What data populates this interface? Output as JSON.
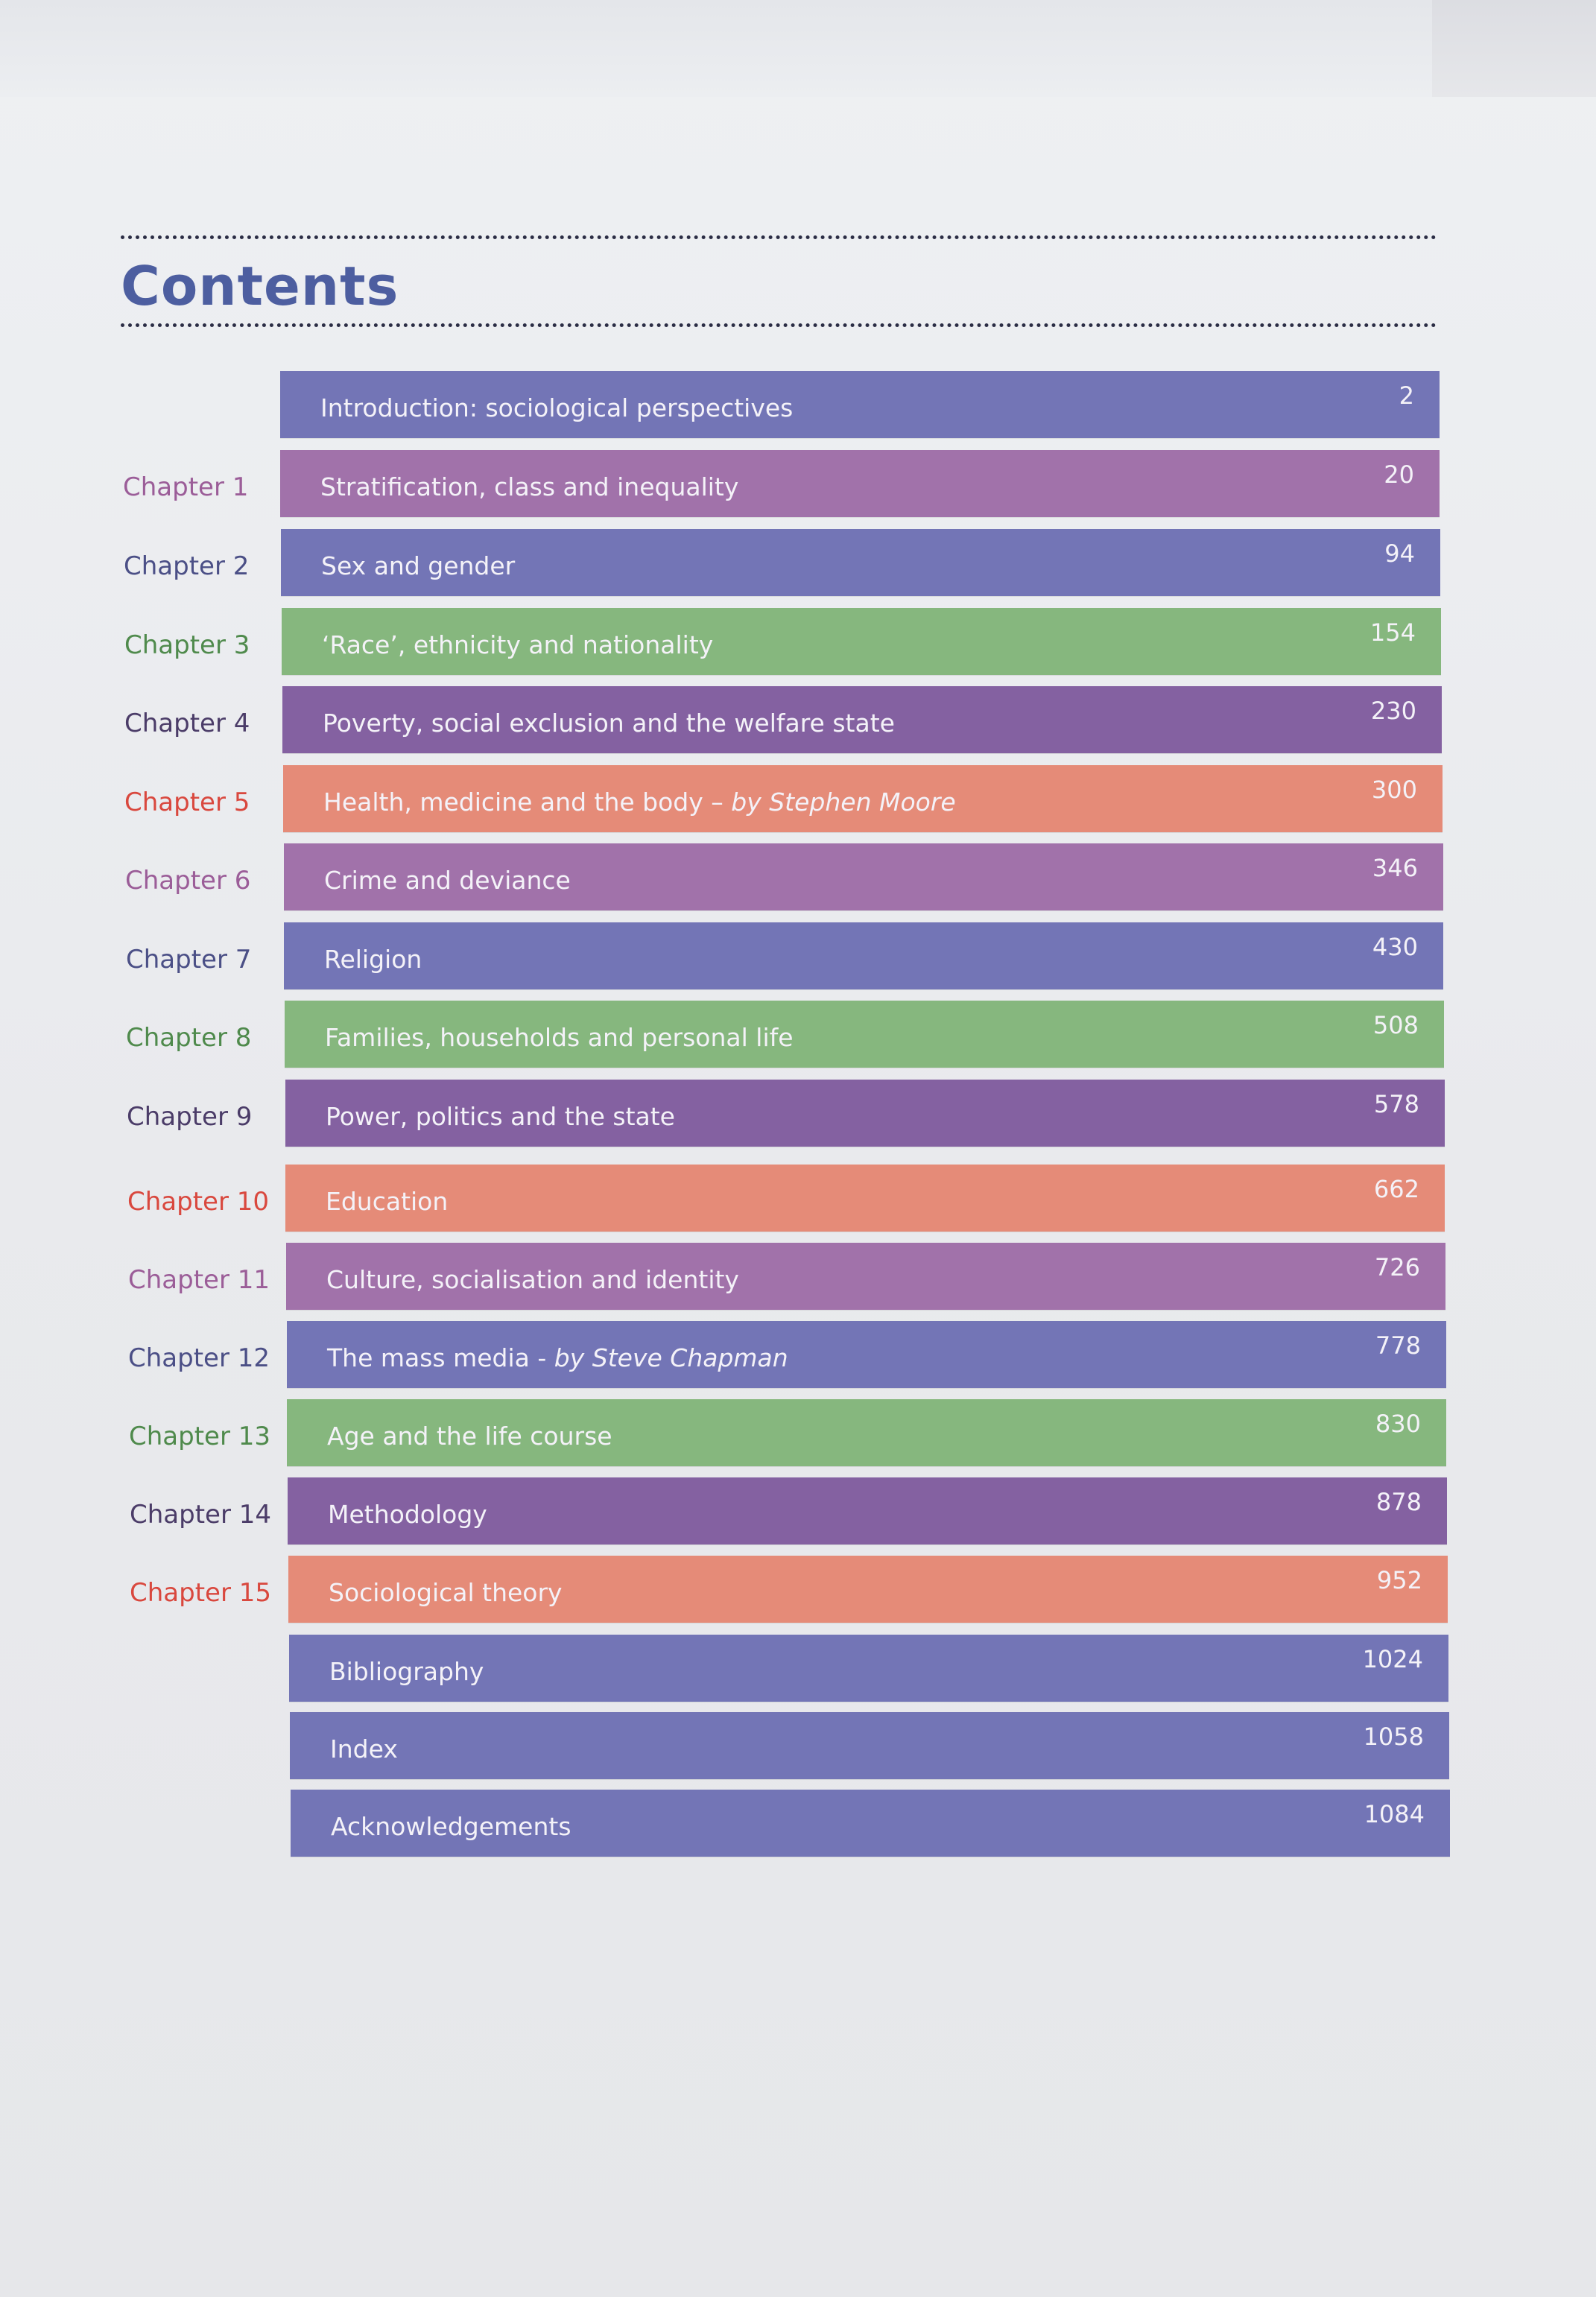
{
  "heading": "Contents",
  "colors": {
    "blue": "#7375b6",
    "purple": "#a172aa",
    "green": "#86b77e",
    "violet": "#8461a1",
    "salmon": "#e58b78",
    "heading": "#4d5ea0"
  },
  "entries": [
    {
      "chapter": "",
      "title": "Introduction: sociological perspectives",
      "author": "",
      "page": "2",
      "color": "blue"
    },
    {
      "chapter": "Chapter 1",
      "title": "Stratification, class and inequality",
      "author": "",
      "page": "20",
      "color": "purple"
    },
    {
      "chapter": "Chapter 2",
      "title": "Sex and gender",
      "author": "",
      "page": "94",
      "color": "blue"
    },
    {
      "chapter": "Chapter 3",
      "title": "‘Race’, ethnicity and nationality",
      "author": "",
      "page": "154",
      "color": "green"
    },
    {
      "chapter": "Chapter 4",
      "title": "Poverty, social exclusion and the welfare state",
      "author": "",
      "page": "230",
      "color": "violet"
    },
    {
      "chapter": "Chapter 5",
      "title": "Health, medicine and the body – ",
      "author": "by Stephen Moore",
      "page": "300",
      "color": "salmon"
    },
    {
      "chapter": "Chapter 6",
      "title": "Crime and deviance",
      "author": "",
      "page": "346",
      "color": "purple"
    },
    {
      "chapter": "Chapter 7",
      "title": "Religion",
      "author": "",
      "page": "430",
      "color": "blue"
    },
    {
      "chapter": "Chapter 8",
      "title": "Families, households and personal life",
      "author": "",
      "page": "508",
      "color": "green"
    },
    {
      "chapter": "Chapter 9",
      "title": "Power, politics and the state",
      "author": "",
      "page": "578",
      "color": "violet"
    },
    {
      "chapter": "Chapter 10",
      "title": "Education",
      "author": "",
      "page": "662",
      "color": "salmon"
    },
    {
      "chapter": "Chapter 11",
      "title": "Culture, socialisation and identity",
      "author": "",
      "page": "726",
      "color": "purple"
    },
    {
      "chapter": "Chapter 12",
      "title": "The mass media - ",
      "author": "by Steve Chapman",
      "page": "778",
      "color": "blue"
    },
    {
      "chapter": "Chapter 13",
      "title": "Age and the life course",
      "author": "",
      "page": "830",
      "color": "green"
    },
    {
      "chapter": "Chapter 14",
      "title": "Methodology",
      "author": "",
      "page": "878",
      "color": "violet"
    },
    {
      "chapter": "Chapter 15",
      "title": "Sociological theory",
      "author": "",
      "page": "952",
      "color": "salmon"
    },
    {
      "chapter": "",
      "title": "Bibliography",
      "author": "",
      "page": "1024",
      "color": "blue"
    },
    {
      "chapter": "",
      "title": "Index",
      "author": "",
      "page": "1058",
      "color": "blue"
    },
    {
      "chapter": "",
      "title": "Acknowledgements",
      "author": "",
      "page": "1084",
      "color": "blue"
    }
  ]
}
